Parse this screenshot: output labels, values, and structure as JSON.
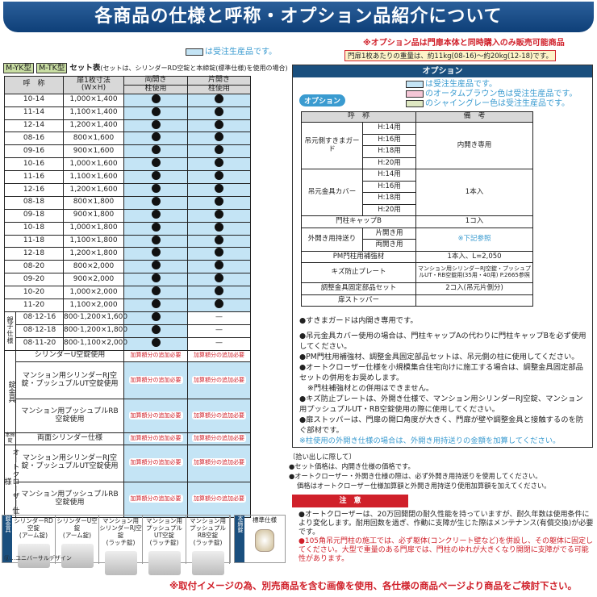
{
  "title": "各商品の仕様と呼称・オプション品紹介について",
  "order_legend": "は受注生産品です。",
  "option_notice": "※オプション品は門扉本体と同時購入のみ販売可能商品",
  "weight_note": "門扉1枚あたりの重量は、約11kg(08-16)〜約20kg(12-18)です。",
  "set_table": {
    "model_tags": [
      "M-YK型",
      "M-TK型"
    ],
    "title": "セット表",
    "subtitle": "(セットは、シリンダーRD空錠と本締錠(標準仕様)を使用の場合)",
    "headers": {
      "name": "呼　称",
      "size": "扉1枚寸法\n(W×H)",
      "double": "両開き",
      "single": "片開き",
      "post": "柱使用"
    },
    "rows": [
      [
        "10-14",
        "1,000×1,400"
      ],
      [
        "11-14",
        "1,100×1,400"
      ],
      [
        "12-14",
        "1,200×1,400"
      ],
      [
        "08-16",
        "800×1,600"
      ],
      [
        "09-16",
        "900×1,600"
      ],
      [
        "10-16",
        "1,000×1,600"
      ],
      [
        "11-16",
        "1,100×1,600"
      ],
      [
        "12-16",
        "1,200×1,600"
      ],
      [
        "08-18",
        "800×1,800"
      ],
      [
        "09-18",
        "900×1,800"
      ],
      [
        "10-18",
        "1,000×1,800"
      ],
      [
        "11-18",
        "1,100×1,800"
      ],
      [
        "12-18",
        "1,200×1,800"
      ],
      [
        "08-20",
        "800×2,000"
      ],
      [
        "09-20",
        "900×2,000"
      ],
      [
        "10-20",
        "1,000×2,000"
      ],
      [
        "11-20",
        "1,100×2,000"
      ]
    ],
    "oyako_label": "親子仕様",
    "oyako_rows": [
      [
        "08·12-16",
        "800·1,200×1,600"
      ],
      [
        "08·12-18",
        "800·1,200×1,800"
      ],
      [
        "08·11-20",
        "800·1,100×2,000"
      ]
    ],
    "dash": "—",
    "lock_label": "錠金具",
    "lock_rows": [
      "シリンダーU空錠使用",
      "マンション用シリンダーRJ空錠・プッシュプルUT空錠使用",
      "マンション用プッシュプルRB空錠使用"
    ],
    "deadbolt_label": "本締錠",
    "deadbolt_row": "両面シリンダー仕様",
    "closer_label": "オートクローザー仕様",
    "closer_rows": [
      "マンション用シリンダーRJ空錠・プッシュプルUT空錠使用",
      "マンション用プッシュプルRB空錠使用"
    ],
    "add_cost": "加算額分の追加必要"
  },
  "options": {
    "header": "オプション",
    "badge": "オプション",
    "legend": [
      "は受注生産品です。",
      "のオータムブラウン色は受注生産品です。",
      "のシャイングレー色は受注生産品です。"
    ],
    "legend_colors": [
      "#c4e4f5",
      "#f4c6d6",
      "#dfe8c2"
    ],
    "col_name": "呼　称",
    "col_note": "備　考",
    "guard": "吊元側すきまガード",
    "cover": "吊元金具カバー",
    "heights": [
      "H:14用",
      "H:16用",
      "H:18用",
      "H:20用"
    ],
    "guard_note": "内開き専用",
    "cover_note": "1本入",
    "cap": "門柱キャップB",
    "cap_note": "1コ入",
    "outward": "外開き用持送り",
    "outward_sub": [
      "片開き用",
      "両開き用"
    ],
    "outward_note": "※下記参照",
    "pm": "PM門柱用補強材",
    "pm_note": "1本入、L=2,050",
    "plate": "キズ防止プレート",
    "plate_note": "マンション用シリンダーRJ空錠・プッシュプルUT・RB空錠用(35用・40用) P.2665参照",
    "adjust": "調整金具固定部品セット",
    "adjust_note": "2コ入(吊元片側分)",
    "stopper": "扉ストッパー",
    "notes": [
      "●すきまガードは内開き専用です。",
      "●吊元金具カバー使用の場合は、門柱キャップAの代わりに門柱キャップBを必ず使用してください。",
      "●PM門柱用補強材、調整金具固定部品セットは、吊元側の柱に使用してください。",
      "●オートクローザー仕様を小規模集合住宅向けに施工する場合は、調整金具固定部品セットの併用をお奨めします。",
      "※門柱補強材との併用はできません。",
      "●キズ防止プレートは、外開き仕様で、マンション用シリンダーRJ空錠、マンション用プッシュプルUT・RB空錠使用の際に使用してください。",
      "●扉ストッパーは、門扉の開口角度が大きく、門扉が壁や調整金具と接触するのを防ぐ部材です。"
    ],
    "note_cyan": "※柱使用の外開き仕様の場合は、外開き用持送りの金額を加算してください。"
  },
  "pickup": {
    "title": "〔拾い出しに際して〕",
    "lines": [
      "●セット価格は、内開き仕様の価格です。",
      "●オートクローザー・外開き仕様の際は、必ず外開き用持送りを使用してください。",
      "価格はオートクローザー仕様加算額と外開き用持送り使用加算額を加えてください。"
    ]
  },
  "caution": {
    "label": "注　意",
    "black": "●オートクローザーは、20万回開閉の耐久性能を持っていますが、耐久年数は使用条件により変化します。耐用回数を過ぎ、作動に支障が生じた際はメンテナンス(有償交換)が必要です。",
    "red": "●105角吊元門柱の施工では、必ず躯体(コンクリート壁など)を併設し、その躯体に固定してください。大型で重量のある門扉では、門柱のゆれが大きくなり開閉に支障がでる可能性があります。"
  },
  "hardware": {
    "side_label": "錠金具",
    "items": [
      "シリンダーRD空錠\n(アーム錠)",
      "シリンダーU空錠\n(アーム錠)",
      "マンション用\nシリンダーRJ空錠\n(ラッチ錠)",
      "マンション用\nプッシュプルUT空錠\n(ラッチ錠)",
      "マンション用\nプッシュプルRB空錠\n(ラッチ錠)"
    ],
    "ud_note": "Ⓤ…ユニバーサルデザイン",
    "deadbolt_label": "本締錠",
    "deadbolt_std": "標準仕様"
  },
  "footer": "※取付イメージの為、別売商品を含む画像を使用、各仕様の商品ページより商品をご検討下さい。"
}
